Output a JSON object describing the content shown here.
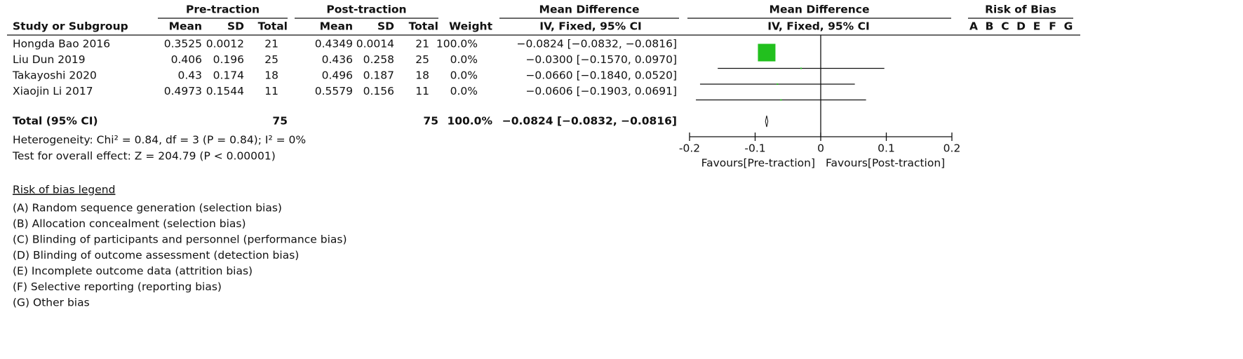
{
  "chart_data": {
    "type": "forest",
    "group_headers": [
      "Pre-traction",
      "Post-traction",
      "Mean Difference",
      "Mean Difference",
      "Risk of Bias"
    ],
    "column_headers": [
      "Study or Subgroup",
      "Mean",
      "SD",
      "Total",
      "Mean",
      "SD",
      "Total",
      "Weight",
      "IV, Fixed, 95% CI",
      "IV, Fixed, 95% CI"
    ],
    "bias_domains": [
      "A",
      "B",
      "C",
      "D",
      "E",
      "F",
      "G"
    ],
    "rows": [
      [
        "Hongda Bao 2016",
        "0.3525",
        "0.0012",
        "21",
        "0.4349",
        "0.0014",
        "21"
      ],
      [
        "Liu Dun 2019",
        "0.406",
        "0.196",
        "25",
        "0.436",
        "0.258",
        "25"
      ],
      [
        "Takayoshi 2020",
        "0.43",
        "0.174",
        "18",
        "0.496",
        "0.187",
        "18"
      ],
      [
        "Xiaojin Li 2017",
        "0.4973",
        "0.1544",
        "11",
        "0.5579",
        "0.156",
        "11"
      ]
    ],
    "weights": [
      100,
      0,
      0,
      0
    ],
    "weight_labels": [
      "100.0%",
      "0.0%",
      "0.0%",
      "0.0%"
    ],
    "values": [
      -0.0824,
      -0.03,
      -0.066,
      -0.0606
    ],
    "ci_low": [
      -0.0832,
      -0.157,
      -0.184,
      -0.1903
    ],
    "ci_high": [
      -0.0816,
      0.097,
      0.052,
      0.0691
    ],
    "value_labels": [
      "−0.0824 [−0.0832, −0.0816]",
      "−0.0300 [−0.1570, 0.0970]",
      "−0.0660 [−0.1840, 0.0520]",
      "−0.0606 [−0.1903, 0.0691]"
    ],
    "total": {
      "label": "Total (95% CI)",
      "pre_total": "75",
      "post_total": "75",
      "weight_label": "100.0%",
      "value": -0.0824,
      "ci_low": -0.0832,
      "ci_high": -0.0816,
      "value_label": "−0.0824 [−0.0832, −0.0816]"
    },
    "heterogeneity": "Heterogeneity: Chi² = 0.84, df = 3 (P = 0.84); I² = 0%",
    "overall_effect": "Test for overall effect: Z = 204.79 (P < 0.00001)",
    "xlim": [
      -0.2,
      0.2
    ],
    "xticks": [
      -0.2,
      -0.1,
      0,
      0.1,
      0.2
    ],
    "favours_left": "Favours[Pre-traction]",
    "favours_right": "Favours[Post-traction]",
    "color": "#22c01e",
    "legend": {
      "title": "Risk of bias legend",
      "items": [
        "(A) Random sequence generation (selection bias)",
        "(B) Allocation concealment (selection bias)",
        "(C) Blinding of participants and personnel (performance bias)",
        "(D) Blinding of outcome assessment (detection bias)",
        "(E) Incomplete outcome data (attrition bias)",
        "(F) Selective reporting (reporting bias)",
        "(G) Other bias"
      ]
    }
  }
}
